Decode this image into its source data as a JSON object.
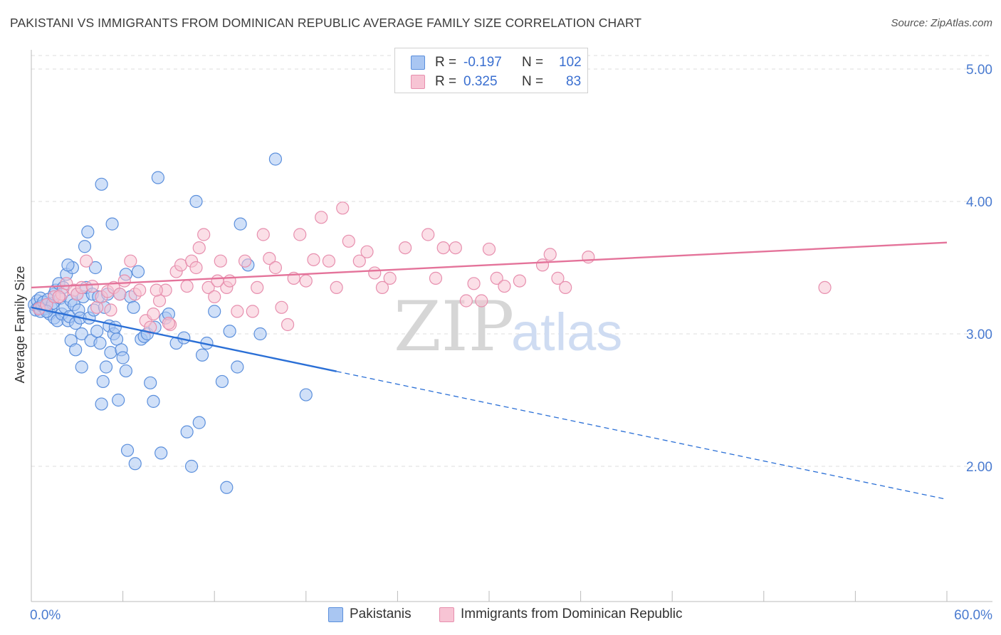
{
  "header": {
    "title": "PAKISTANI VS IMMIGRANTS FROM DOMINICAN REPUBLIC AVERAGE FAMILY SIZE CORRELATION CHART",
    "source": "Source: ZipAtlas.com"
  },
  "legend": {
    "series1": {
      "r_label": "R =",
      "r_value": "-0.197",
      "n_label": "N =",
      "n_value": "102"
    },
    "series2": {
      "r_label": "R =",
      "r_value": "0.325",
      "n_label": "N =",
      "n_value": "83"
    }
  },
  "bottom_legend": {
    "series1": "Pakistanis",
    "series2": "Immigrants from Dominican Republic"
  },
  "watermark": {
    "zip": "ZIP",
    "atlas": "atlas"
  },
  "colors": {
    "blue_fill": "#a9c6f2",
    "blue_stroke": "#5b8fdc",
    "blue_line": "#2a6fd6",
    "pink_fill": "#f7c4d4",
    "pink_stroke": "#e78fae",
    "pink_line": "#e4739a",
    "tick_text": "#4a7bd0",
    "grid": "#dddddd"
  },
  "chart_data": {
    "type": "scatter",
    "title": "PAKISTANI VS IMMIGRANTS FROM DOMINICAN REPUBLIC AVERAGE FAMILY SIZE CORRELATION CHART",
    "ylabel": "Average Family Size",
    "xlabel": "",
    "xlim": [
      0,
      60
    ],
    "ylim": [
      1.0,
      5.1
    ],
    "x_tick_labels": {
      "min": "0.0%",
      "max": "60.0%"
    },
    "y_ticks": [
      2.0,
      3.0,
      4.0,
      5.0
    ],
    "y_tick_labels": [
      "2.00",
      "3.00",
      "4.00",
      "5.00"
    ],
    "grid": true,
    "legend_position": "top-center",
    "series": [
      {
        "name": "Pakistanis",
        "r": -0.197,
        "n": 102,
        "trend": {
          "x0": 0,
          "y0": 3.2,
          "x_solid_end": 20,
          "x1": 60,
          "y1": 1.75
        },
        "points": [
          [
            0.2,
            3.22
          ],
          [
            0.3,
            3.18
          ],
          [
            0.4,
            3.25
          ],
          [
            0.5,
            3.2
          ],
          [
            0.6,
            3.17
          ],
          [
            0.6,
            3.27
          ],
          [
            0.7,
            3.21
          ],
          [
            0.8,
            3.24
          ],
          [
            0.9,
            3.19
          ],
          [
            1.0,
            3.22
          ],
          [
            1.1,
            3.26
          ],
          [
            1.2,
            3.15
          ],
          [
            1.3,
            3.2
          ],
          [
            1.4,
            3.23
          ],
          [
            1.5,
            3.12
          ],
          [
            1.5,
            3.3
          ],
          [
            1.6,
            3.33
          ],
          [
            1.7,
            3.1
          ],
          [
            1.8,
            3.38
          ],
          [
            1.9,
            3.27
          ],
          [
            2.0,
            3.15
          ],
          [
            2.1,
            3.35
          ],
          [
            2.2,
            3.2
          ],
          [
            2.3,
            3.45
          ],
          [
            2.4,
            3.1
          ],
          [
            2.5,
            3.13
          ],
          [
            2.6,
            2.95
          ],
          [
            2.6,
            3.25
          ],
          [
            2.7,
            3.5
          ],
          [
            2.8,
            3.22
          ],
          [
            2.9,
            3.08
          ],
          [
            3.0,
            3.3
          ],
          [
            3.1,
            3.18
          ],
          [
            3.2,
            3.12
          ],
          [
            3.3,
            3.0
          ],
          [
            3.4,
            3.28
          ],
          [
            3.5,
            3.66
          ],
          [
            3.6,
            3.35
          ],
          [
            3.7,
            3.77
          ],
          [
            3.8,
            3.12
          ],
          [
            3.9,
            2.95
          ],
          [
            4.0,
            3.3
          ],
          [
            4.1,
            3.18
          ],
          [
            4.2,
            3.5
          ],
          [
            4.3,
            3.02
          ],
          [
            4.4,
            3.28
          ],
          [
            4.5,
            2.93
          ],
          [
            4.6,
            4.13
          ],
          [
            4.7,
            2.64
          ],
          [
            4.8,
            3.2
          ],
          [
            4.9,
            2.75
          ],
          [
            5.0,
            3.3
          ],
          [
            5.1,
            3.06
          ],
          [
            5.2,
            2.86
          ],
          [
            5.3,
            3.83
          ],
          [
            5.4,
            3.0
          ],
          [
            5.5,
            3.05
          ],
          [
            5.6,
            2.96
          ],
          [
            5.8,
            3.3
          ],
          [
            5.9,
            2.88
          ],
          [
            6.0,
            2.82
          ],
          [
            6.2,
            2.72
          ],
          [
            6.3,
            2.12
          ],
          [
            6.5,
            3.28
          ],
          [
            6.7,
            3.2
          ],
          [
            6.8,
            2.02
          ],
          [
            7.0,
            3.47
          ],
          [
            7.2,
            2.96
          ],
          [
            7.4,
            2.98
          ],
          [
            7.6,
            3.0
          ],
          [
            7.8,
            2.63
          ],
          [
            8.0,
            2.49
          ],
          [
            8.1,
            3.05
          ],
          [
            8.3,
            4.18
          ],
          [
            8.5,
            2.1
          ],
          [
            8.8,
            3.12
          ],
          [
            9.0,
            3.15
          ],
          [
            9.5,
            2.93
          ],
          [
            10.0,
            2.97
          ],
          [
            10.2,
            2.26
          ],
          [
            10.5,
            2.0
          ],
          [
            10.8,
            4.0
          ],
          [
            11.0,
            2.33
          ],
          [
            11.2,
            2.84
          ],
          [
            11.5,
            2.93
          ],
          [
            12.0,
            3.17
          ],
          [
            12.5,
            2.64
          ],
          [
            13.0,
            3.02
          ],
          [
            13.5,
            2.75
          ],
          [
            14.2,
            3.52
          ],
          [
            1.0,
            3.17
          ],
          [
            2.4,
            3.52
          ],
          [
            2.9,
            2.88
          ],
          [
            3.3,
            2.75
          ],
          [
            4.6,
            2.47
          ],
          [
            5.7,
            2.5
          ],
          [
            6.2,
            3.45
          ],
          [
            12.8,
            1.84
          ],
          [
            13.7,
            3.83
          ],
          [
            15.0,
            3.0
          ],
          [
            16.0,
            4.32
          ],
          [
            18.0,
            2.54
          ]
        ]
      },
      {
        "name": "Immigrants from Dominican Republic",
        "r": 0.325,
        "n": 83,
        "trend": {
          "x0": 0,
          "y0": 3.35,
          "x1": 60,
          "y1": 3.69
        },
        "points": [
          [
            0.5,
            3.19
          ],
          [
            1.0,
            3.22
          ],
          [
            1.5,
            3.28
          ],
          [
            2.0,
            3.3
          ],
          [
            2.3,
            3.38
          ],
          [
            2.8,
            3.33
          ],
          [
            3.0,
            3.3
          ],
          [
            3.3,
            3.35
          ],
          [
            3.6,
            3.55
          ],
          [
            4.0,
            3.36
          ],
          [
            4.3,
            3.2
          ],
          [
            4.6,
            3.28
          ],
          [
            5.0,
            3.32
          ],
          [
            5.4,
            3.35
          ],
          [
            5.8,
            3.3
          ],
          [
            6.1,
            3.4
          ],
          [
            6.5,
            3.55
          ],
          [
            6.8,
            3.3
          ],
          [
            7.1,
            3.33
          ],
          [
            7.5,
            3.1
          ],
          [
            7.8,
            3.05
          ],
          [
            8.0,
            3.15
          ],
          [
            8.4,
            3.25
          ],
          [
            8.8,
            3.33
          ],
          [
            9.1,
            3.07
          ],
          [
            9.5,
            3.47
          ],
          [
            9.8,
            3.52
          ],
          [
            10.2,
            3.36
          ],
          [
            10.5,
            3.55
          ],
          [
            10.8,
            3.5
          ],
          [
            11.0,
            3.65
          ],
          [
            11.3,
            3.75
          ],
          [
            11.6,
            3.35
          ],
          [
            12.0,
            3.28
          ],
          [
            12.4,
            3.55
          ],
          [
            12.8,
            3.35
          ],
          [
            13.0,
            3.4
          ],
          [
            13.5,
            3.17
          ],
          [
            14.0,
            3.55
          ],
          [
            14.5,
            3.17
          ],
          [
            14.8,
            3.35
          ],
          [
            15.2,
            3.75
          ],
          [
            15.6,
            3.57
          ],
          [
            16.0,
            3.5
          ],
          [
            16.4,
            3.2
          ],
          [
            16.8,
            3.07
          ],
          [
            17.2,
            3.42
          ],
          [
            17.6,
            3.75
          ],
          [
            18.0,
            3.4
          ],
          [
            18.5,
            3.56
          ],
          [
            19.0,
            3.88
          ],
          [
            19.5,
            3.55
          ],
          [
            20.0,
            3.35
          ],
          [
            20.4,
            3.95
          ],
          [
            20.8,
            3.7
          ],
          [
            21.5,
            3.55
          ],
          [
            22.0,
            3.62
          ],
          [
            22.5,
            3.46
          ],
          [
            23.0,
            3.35
          ],
          [
            23.5,
            3.42
          ],
          [
            24.5,
            3.65
          ],
          [
            26.0,
            3.75
          ],
          [
            26.5,
            3.42
          ],
          [
            27.0,
            3.65
          ],
          [
            27.8,
            3.65
          ],
          [
            28.5,
            3.25
          ],
          [
            29.0,
            3.38
          ],
          [
            29.5,
            3.25
          ],
          [
            30.0,
            3.64
          ],
          [
            30.5,
            3.42
          ],
          [
            31.0,
            3.36
          ],
          [
            32.0,
            3.4
          ],
          [
            33.5,
            3.52
          ],
          [
            34.0,
            3.6
          ],
          [
            34.5,
            3.42
          ],
          [
            35.0,
            3.35
          ],
          [
            36.5,
            3.58
          ],
          [
            52.0,
            3.35
          ],
          [
            9.0,
            3.08
          ],
          [
            12.2,
            3.4
          ],
          [
            1.8,
            3.28
          ],
          [
            5.2,
            3.18
          ],
          [
            8.2,
            3.33
          ]
        ]
      }
    ]
  }
}
